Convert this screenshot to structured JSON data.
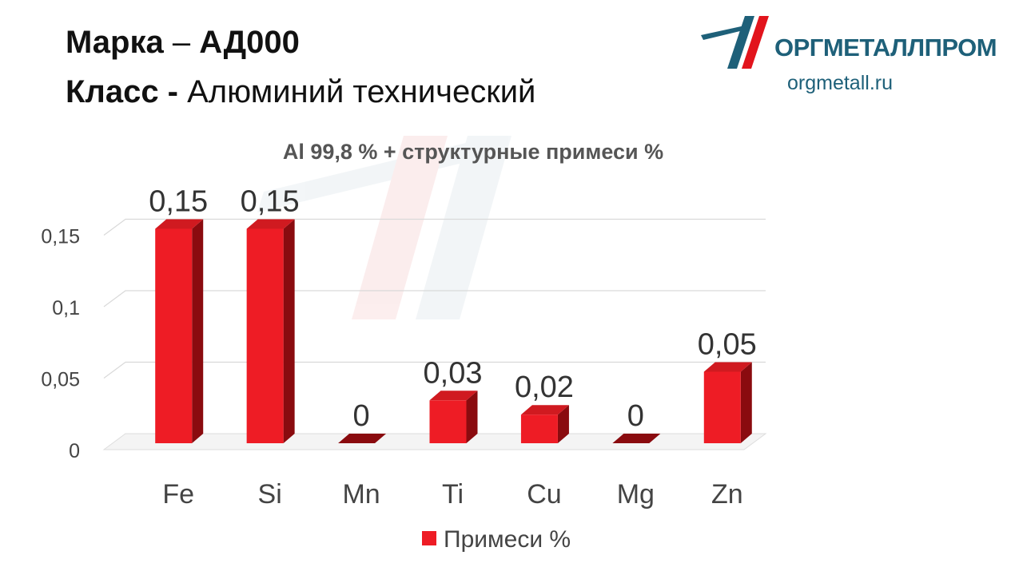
{
  "header": {
    "grade_label": "Марка",
    "grade_dash": "–",
    "grade_value": "АД000",
    "class_label": "Класс -",
    "class_value": "Алюминий технический"
  },
  "logo": {
    "name": "ОРГМЕТАЛЛПРОМ",
    "url": "orgmetall.ru"
  },
  "colors": {
    "bar": "#ee1c25",
    "bar_dark": "#8a0b0f",
    "brand_blue": "#1e6079",
    "brand_red": "#e2141c"
  },
  "chart_data": {
    "type": "bar",
    "title": "Al 99,8 % + структурные примеси %",
    "categories": [
      "Fe",
      "Si",
      "Mn",
      "Ti",
      "Cu",
      "Mg",
      "Zn"
    ],
    "series": [
      {
        "name": "Примеси %",
        "values": [
          0.15,
          0.15,
          0,
          0.03,
          0.02,
          0,
          0.05
        ]
      }
    ],
    "data_labels": [
      "0,15",
      "0,15",
      "0",
      "0,03",
      "0,02",
      "0",
      "0,05"
    ],
    "yticks": [
      0,
      0.05,
      0.1,
      0.15
    ],
    "ytick_labels": [
      "0",
      "0,05",
      "0,1",
      "0,15"
    ],
    "ylim": [
      0,
      0.2
    ],
    "grid": true,
    "legend_position": "bottom",
    "style": "3d-bars"
  }
}
